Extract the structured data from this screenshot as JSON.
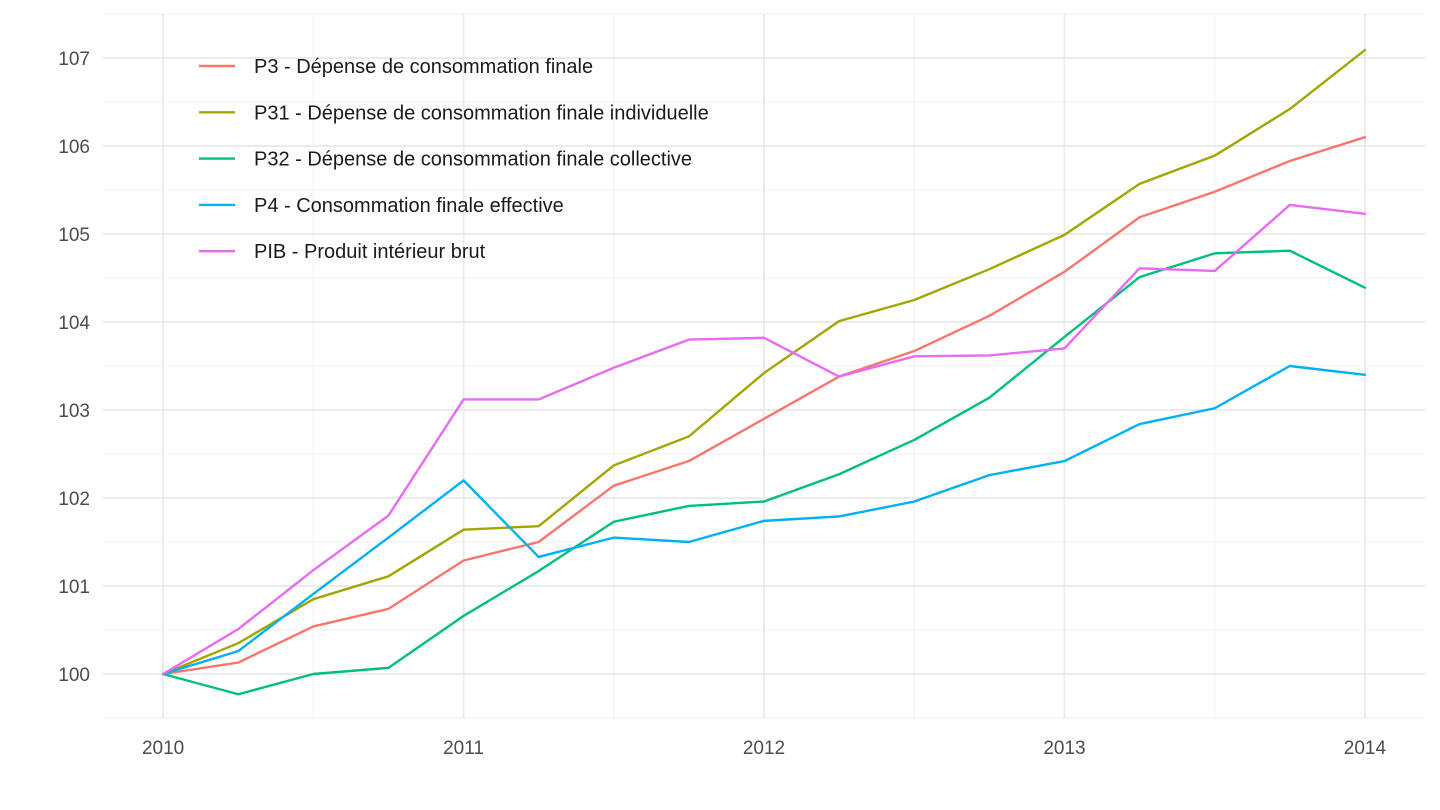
{
  "chart_data": {
    "type": "line",
    "title": "",
    "xlabel": "",
    "ylabel": "",
    "x": [
      2010,
      2010.25,
      2010.5,
      2010.75,
      2011,
      2011.25,
      2011.5,
      2011.75,
      2012,
      2012.25,
      2012.5,
      2012.75,
      2013,
      2013.25,
      2013.5,
      2013.75,
      2014
    ],
    "x_ticks": [
      "2010",
      "2011",
      "2012",
      "2013",
      "2014"
    ],
    "y_ticks": [
      "100",
      "101",
      "102",
      "103",
      "104",
      "105",
      "106",
      "107"
    ],
    "xlim": [
      2009.8,
      2014.2
    ],
    "ylim": [
      99.5,
      107.5
    ],
    "grid": true,
    "legend_position": "top-left",
    "series": [
      {
        "name": "P3 - Dépense de consommation finale",
        "color": "#F8766D",
        "values": [
          100,
          100.13,
          100.54,
          100.74,
          101.29,
          101.5,
          102.14,
          102.42,
          102.9,
          103.38,
          103.67,
          104.07,
          104.57,
          105.19,
          105.48,
          105.83,
          106.1
        ]
      },
      {
        "name": "P31 - Dépense de consommation finale individuelle",
        "color": "#A3A500",
        "values": [
          100,
          100.35,
          100.85,
          101.11,
          101.64,
          101.68,
          102.37,
          102.7,
          103.42,
          104.01,
          104.25,
          104.6,
          104.99,
          105.57,
          105.89,
          106.42,
          107.09
        ]
      },
      {
        "name": "P32 - Dépense de consommation finale collective",
        "color": "#00BF7D",
        "values": [
          100,
          99.77,
          100,
          100.07,
          100.66,
          101.17,
          101.73,
          101.91,
          101.96,
          102.27,
          102.66,
          103.14,
          103.83,
          104.51,
          104.78,
          104.81,
          104.39
        ]
      },
      {
        "name": "P4 - Consommation finale effective",
        "color": "#00B0F6",
        "values": [
          100,
          100.26,
          100.91,
          101.55,
          102.2,
          101.33,
          101.55,
          101.5,
          101.74,
          101.79,
          101.96,
          102.26,
          102.42,
          102.84,
          103.02,
          103.5,
          103.4
        ]
      },
      {
        "name": "PIB - Produit intérieur brut",
        "color": "#E76BF3",
        "values": [
          100,
          100.51,
          101.18,
          101.8,
          103.12,
          103.12,
          103.48,
          103.8,
          103.82,
          103.38,
          103.61,
          103.62,
          103.7,
          104.61,
          104.58,
          105.33,
          105.23
        ]
      }
    ]
  }
}
